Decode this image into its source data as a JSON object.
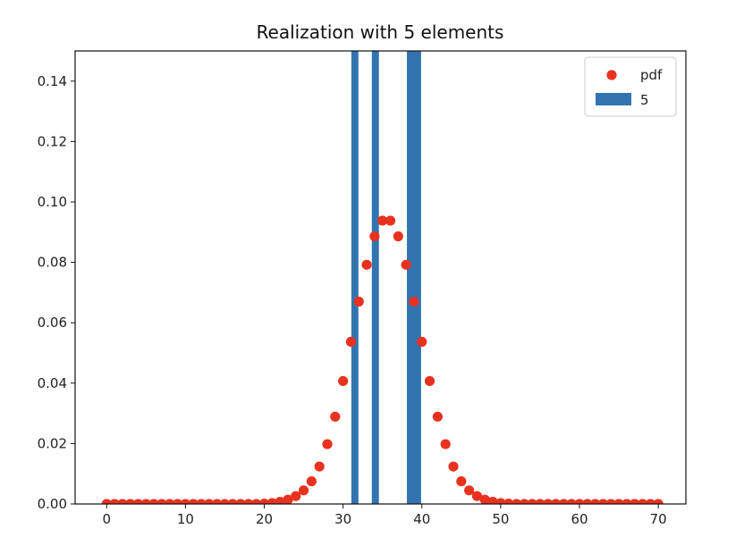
{
  "chart_data": {
    "type": "scatter",
    "title": "Realization with 5 elements",
    "xlabel": "",
    "ylabel": "",
    "xlim": [
      -4,
      73.5
    ],
    "ylim": [
      0,
      0.15
    ],
    "xticks": [
      0,
      10,
      20,
      30,
      40,
      50,
      60,
      70
    ],
    "yticks": [
      0.0,
      0.02,
      0.04,
      0.06,
      0.08,
      0.1,
      0.12,
      0.14
    ],
    "xtick_labels": [
      "0",
      "10",
      "20",
      "30",
      "40",
      "50",
      "60",
      "70"
    ],
    "ytick_labels": [
      "0.00",
      "0.02",
      "0.04",
      "0.06",
      "0.08",
      "0.10",
      "0.12",
      "0.14"
    ],
    "grid": false,
    "legend_position": "top-right",
    "series": [
      {
        "name": "pdf",
        "kind": "scatter",
        "color": "#e8321f",
        "x": [
          0,
          1,
          2,
          3,
          4,
          5,
          6,
          7,
          8,
          9,
          10,
          11,
          12,
          13,
          14,
          15,
          16,
          17,
          18,
          19,
          20,
          21,
          22,
          23,
          24,
          25,
          26,
          27,
          28,
          29,
          30,
          31,
          32,
          33,
          34,
          35,
          36,
          37,
          38,
          39,
          40,
          41,
          42,
          43,
          44,
          45,
          46,
          47,
          48,
          49,
          50,
          51,
          52,
          53,
          54,
          55,
          56,
          57,
          58,
          59,
          60,
          61,
          62,
          63,
          64,
          65,
          66,
          67,
          68,
          69,
          70
        ],
        "y": [
          0,
          0,
          0,
          0,
          0,
          0,
          0,
          0,
          0,
          0,
          0,
          0,
          0,
          0,
          0,
          0,
          0,
          0,
          0,
          0,
          0.0001,
          0.0003,
          0.0007,
          0.0014,
          0.0026,
          0.0045,
          0.0075,
          0.0124,
          0.0198,
          0.0289,
          0.0407,
          0.0537,
          0.067,
          0.0792,
          0.0886,
          0.0938,
          0.0938,
          0.0886,
          0.0792,
          0.067,
          0.0537,
          0.0407,
          0.0289,
          0.0198,
          0.0124,
          0.0075,
          0.0045,
          0.0026,
          0.0014,
          0.0007,
          0.0003,
          0.0001,
          0,
          0,
          0,
          0,
          0,
          0,
          0,
          0,
          0,
          0,
          0,
          0,
          0,
          0,
          0,
          0,
          0,
          0,
          0
        ]
      },
      {
        "name": "5",
        "kind": "bar",
        "color": "#3274b0",
        "bars": [
          {
            "x": 31.5,
            "width": 0.9,
            "height": 0.15
          },
          {
            "x": 34.1,
            "width": 0.9,
            "height": 0.15
          },
          {
            "x": 39.0,
            "width": 1.8,
            "height": 0.15
          }
        ]
      }
    ]
  }
}
